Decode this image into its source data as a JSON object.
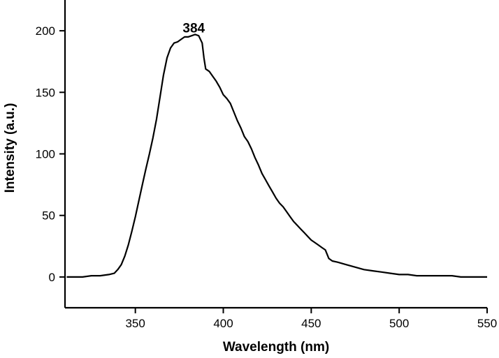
{
  "chart_data": {
    "type": "line",
    "title": "",
    "xlabel": "Wavelength (nm)",
    "ylabel": "Intensity (a.u.)",
    "xlim": [
      310,
      550
    ],
    "ylim": [
      -25,
      225
    ],
    "xticks": [
      350,
      400,
      450,
      500,
      550
    ],
    "yticks": [
      0,
      50,
      100,
      150,
      200
    ],
    "grid": false,
    "legend": "none",
    "annotations": [
      {
        "text": "384",
        "x": 384,
        "y": 202
      }
    ],
    "series": [
      {
        "color": "#000000",
        "x": [
          311,
          315,
          320,
          325,
          330,
          335,
          338,
          340,
          342,
          344,
          346,
          348,
          350,
          352,
          354,
          356,
          358,
          360,
          362,
          364,
          366,
          368,
          370,
          372,
          374,
          376,
          378,
          380,
          382,
          384,
          386,
          388,
          389,
          390,
          392,
          394,
          396,
          398,
          400,
          402,
          404,
          406,
          408,
          410,
          412,
          414,
          416,
          418,
          420,
          422,
          424,
          426,
          428,
          430,
          432,
          434,
          436,
          438,
          440,
          442,
          444,
          446,
          448,
          450,
          452,
          454,
          456,
          458,
          460,
          462,
          465,
          470,
          475,
          480,
          485,
          490,
          495,
          500,
          505,
          510,
          515,
          520,
          525,
          530,
          535,
          540,
          545,
          550
        ],
        "y": [
          0,
          0,
          0,
          1,
          1,
          2,
          3,
          6,
          10,
          17,
          26,
          37,
          49,
          62,
          75,
          88,
          100,
          113,
          128,
          146,
          164,
          178,
          186,
          190,
          191,
          193,
          195,
          195,
          196,
          197,
          196,
          190,
          178,
          169,
          167,
          163,
          159,
          154,
          148,
          145,
          141,
          134,
          127,
          121,
          114,
          110,
          104,
          97,
          91,
          84,
          79,
          74,
          69,
          64,
          60,
          57,
          53,
          49,
          45,
          42,
          39,
          36,
          33,
          30,
          28,
          26,
          24,
          22,
          15,
          13,
          12,
          10,
          8,
          6,
          5,
          4,
          3,
          2,
          2,
          1,
          1,
          1,
          1,
          1,
          0,
          0,
          0,
          0
        ]
      }
    ]
  }
}
